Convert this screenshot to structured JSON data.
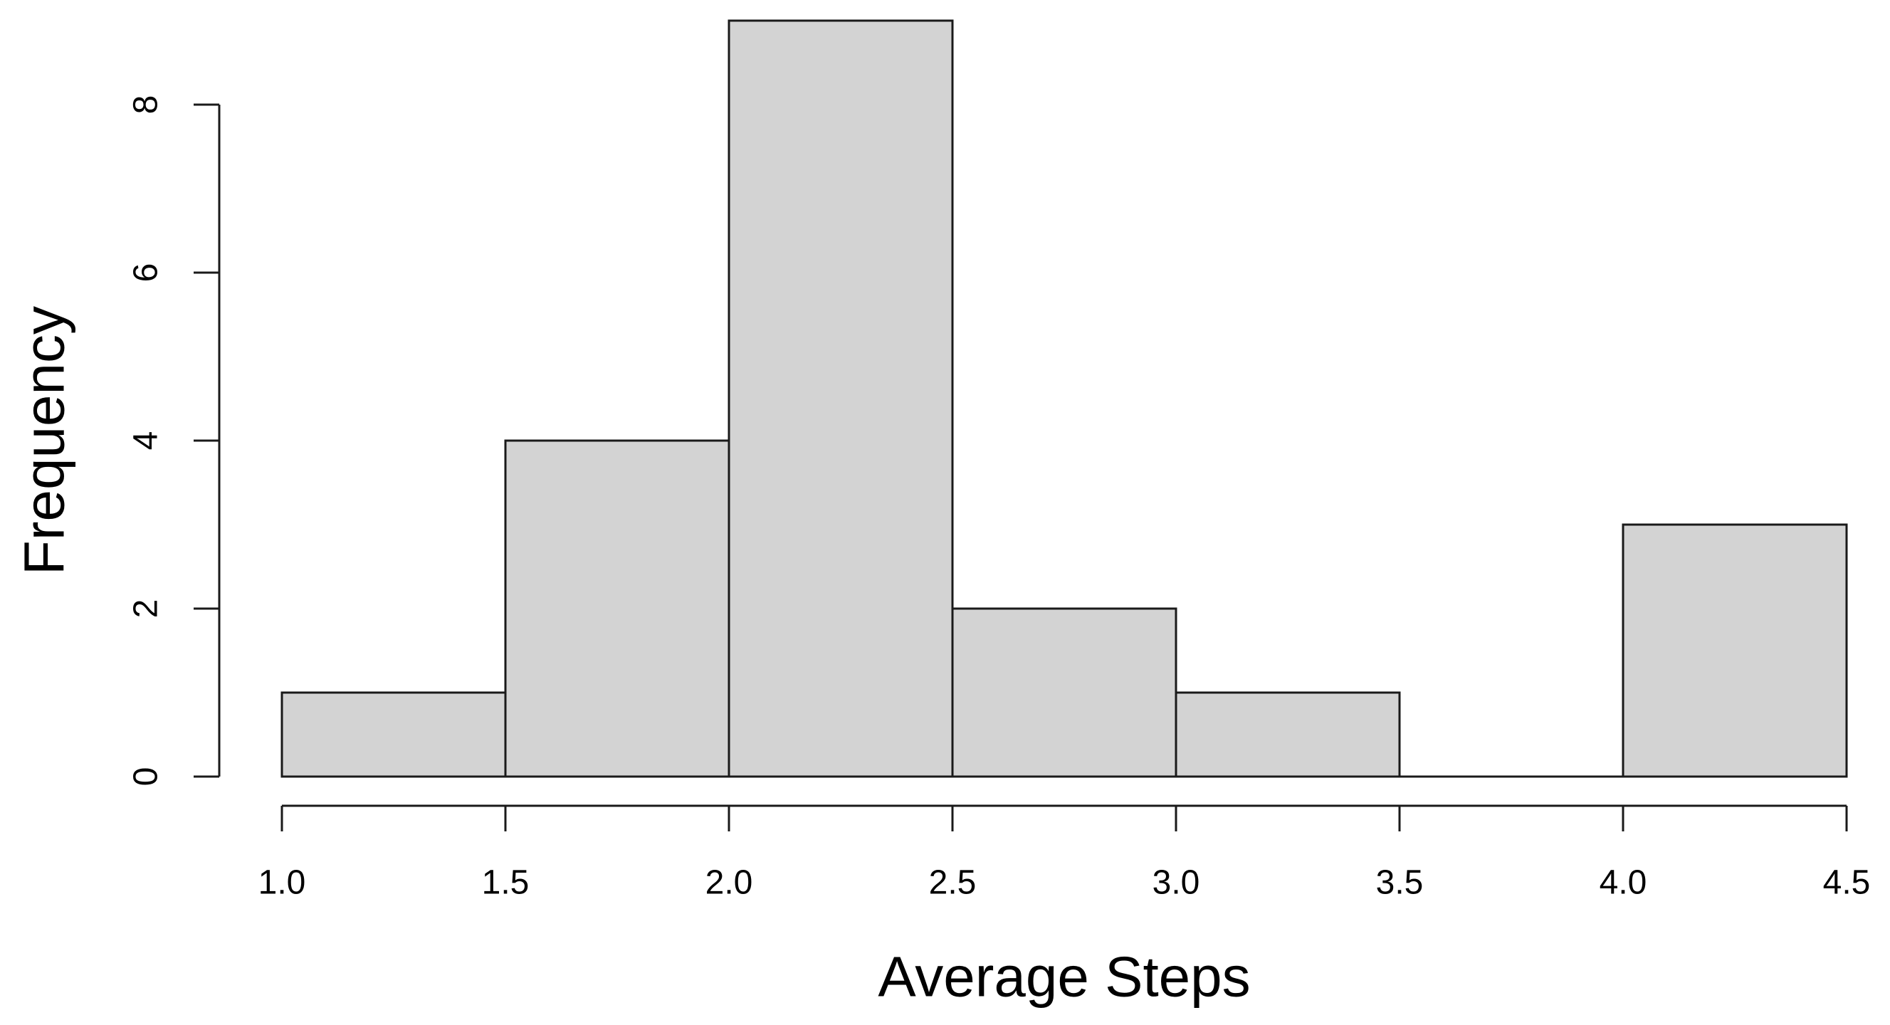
{
  "chart_data": {
    "type": "bar",
    "subtype": "histogram",
    "title": "",
    "xlabel": "Average Steps",
    "ylabel": "Frequency",
    "bin_width": 0.5,
    "bin_edges": [
      1.0,
      1.5,
      2.0,
      2.5,
      3.0,
      3.5,
      4.0,
      4.5
    ],
    "counts": [
      1,
      4,
      9,
      2,
      1,
      0,
      3
    ],
    "categories": [
      "1.0-1.5",
      "1.5-2.0",
      "2.0-2.5",
      "2.5-3.0",
      "3.0-3.5",
      "3.5-4.0",
      "4.0-4.5"
    ],
    "values": [
      1,
      4,
      9,
      2,
      1,
      0,
      3
    ],
    "x_tick_labels": [
      "1.0",
      "1.5",
      "2.0",
      "2.5",
      "3.0",
      "3.5",
      "4.0",
      "4.5"
    ],
    "y_tick_labels": [
      "0",
      "2",
      "4",
      "6",
      "8"
    ],
    "x_tick_values": [
      1.0,
      1.5,
      2.0,
      2.5,
      3.0,
      3.5,
      4.0,
      4.5
    ],
    "y_tick_values": [
      0,
      2,
      4,
      6,
      8
    ],
    "xlim": [
      1.0,
      4.5
    ],
    "ylim": [
      0,
      8
    ],
    "grid": false,
    "legend_position": "none",
    "colors": {
      "bar_fill": "#d3d3d3",
      "bar_border": "#1a1a1a",
      "axis": "#1a1a1a",
      "text": "#000000",
      "background": "#ffffff"
    }
  }
}
